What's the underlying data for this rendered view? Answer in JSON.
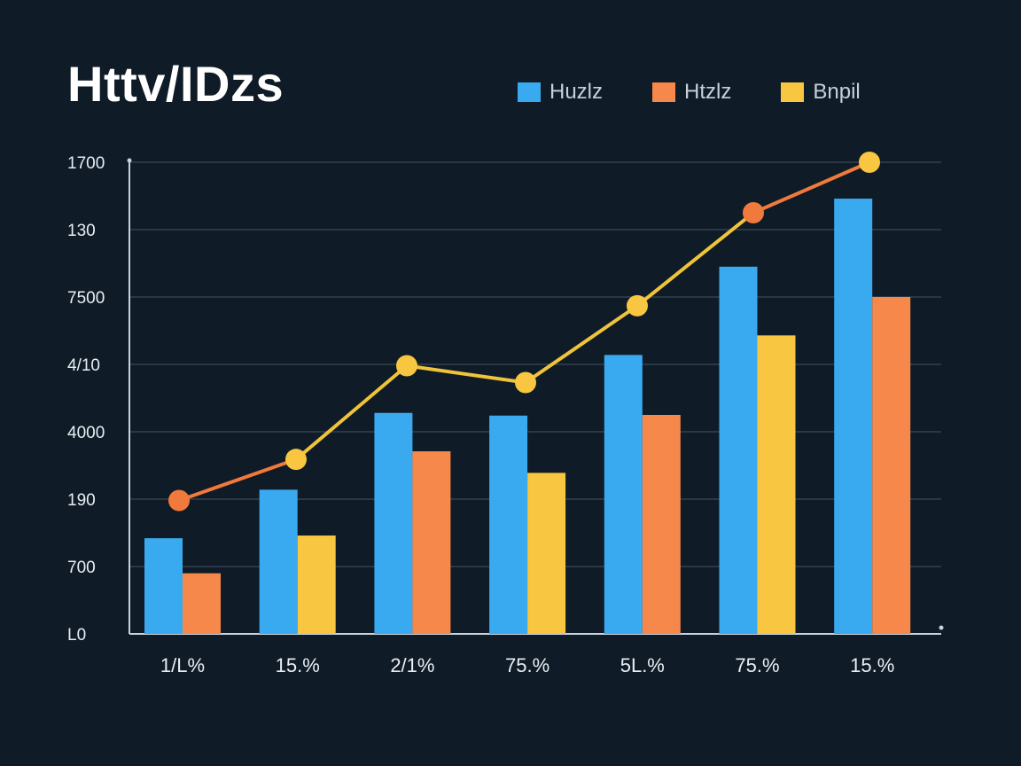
{
  "chart_data": {
    "type": "bar",
    "title": "Httv/IDzs",
    "xlabel": "",
    "ylabel": "",
    "ylim": [
      0,
      7
    ],
    "y_tick_labels": [
      "L0",
      "700",
      "190",
      "4000",
      "4/10",
      "7500",
      "130",
      "1700"
    ],
    "categories": [
      "1/L%",
      "15.%",
      "2/1%",
      "75.%",
      "5L.%",
      "75.%",
      "15.%"
    ],
    "series": [
      {
        "name": "Huzlz",
        "color": "#3aaaf0",
        "values": [
          1.42,
          2.14,
          3.28,
          3.24,
          4.14,
          5.45,
          6.46
        ]
      },
      {
        "name": "Htzlz",
        "color": "#f5884a",
        "values": [
          0.9,
          null,
          2.71,
          null,
          3.25,
          null,
          5.0
        ]
      },
      {
        "name": "Bnpil",
        "color": "#f8c640",
        "values": [
          null,
          1.46,
          null,
          2.39,
          null,
          4.43,
          null
        ]
      }
    ],
    "trend_line": {
      "values": [
        1.98,
        2.59,
        3.98,
        3.73,
        4.87,
        6.25,
        7.0
      ],
      "segment_colors": [
        "#f07a3c",
        "#f0c43a",
        "#f0c43a",
        "#f0c43a",
        "#f0c43a",
        "#f07a3c"
      ],
      "point_colors": [
        "#f07a3c",
        "#f8c640",
        "#f8c640",
        "#f8c640",
        "#f8c640",
        "#f07a3c",
        "#f8c640"
      ]
    },
    "legend_position": "top-right",
    "grid": true
  }
}
